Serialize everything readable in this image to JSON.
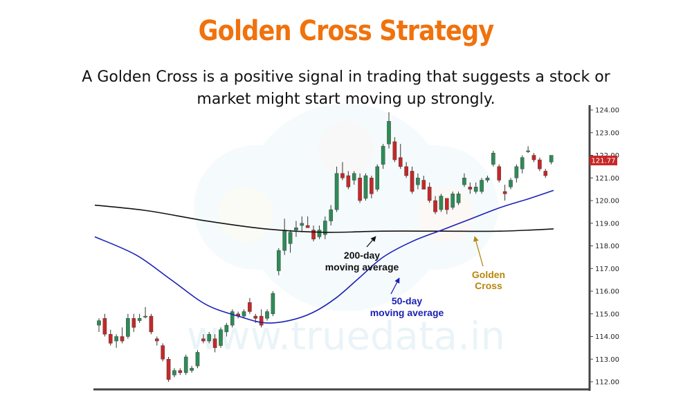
{
  "title": "Golden Cross Strategy",
  "subtitle_line1": "A Golden Cross is a positive signal in trading that suggests a stock or",
  "subtitle_line2": "market might start moving up strongly.",
  "watermark": "www.truedata.in",
  "colors": {
    "title": "#f0720d",
    "up_candle": "#2e8b57",
    "down_candle": "#c62828",
    "ma200": "#111111",
    "ma50": "#1a1fb5",
    "golden_cross_label": "#b7860b",
    "price_tag": "#c62828"
  },
  "chart_data": {
    "type": "candlestick",
    "y_axis": {
      "min": 112,
      "max": 124,
      "position": "right",
      "ticks": [
        "124.00",
        "123.00",
        "122.00",
        "121.00",
        "120.00",
        "119.00",
        "118.00",
        "117.00",
        "116.00",
        "115.00",
        "114.00",
        "113.00",
        "112.00"
      ]
    },
    "last_price": "121.77",
    "candles": [
      {
        "o": 114.5,
        "h": 114.8,
        "l": 114.2,
        "c": 114.7
      },
      {
        "o": 114.8,
        "h": 115.0,
        "l": 114.0,
        "c": 114.1
      },
      {
        "o": 114.1,
        "h": 114.3,
        "l": 113.6,
        "c": 113.7
      },
      {
        "o": 113.8,
        "h": 114.1,
        "l": 113.5,
        "c": 114.0
      },
      {
        "o": 114.0,
        "h": 114.4,
        "l": 113.7,
        "c": 113.8
      },
      {
        "o": 114.0,
        "h": 115.0,
        "l": 113.9,
        "c": 114.8
      },
      {
        "o": 114.8,
        "h": 115.0,
        "l": 114.2,
        "c": 114.4
      },
      {
        "o": 114.7,
        "h": 115.0,
        "l": 114.6,
        "c": 114.8
      },
      {
        "o": 114.9,
        "h": 115.3,
        "l": 114.8,
        "c": 114.9
      },
      {
        "o": 114.9,
        "h": 115.0,
        "l": 114.1,
        "c": 114.2
      },
      {
        "o": 113.9,
        "h": 114.0,
        "l": 113.6,
        "c": 113.8
      },
      {
        "o": 113.6,
        "h": 113.7,
        "l": 112.9,
        "c": 113.0
      },
      {
        "o": 113.0,
        "h": 113.1,
        "l": 112.0,
        "c": 112.1
      },
      {
        "o": 112.3,
        "h": 112.6,
        "l": 112.2,
        "c": 112.5
      },
      {
        "o": 112.5,
        "h": 112.6,
        "l": 112.3,
        "c": 112.4
      },
      {
        "o": 112.4,
        "h": 113.2,
        "l": 112.3,
        "c": 113.1
      },
      {
        "o": 112.5,
        "h": 112.7,
        "l": 112.4,
        "c": 112.6
      },
      {
        "o": 112.7,
        "h": 113.4,
        "l": 112.6,
        "c": 113.3
      },
      {
        "o": 113.9,
        "h": 114.1,
        "l": 113.7,
        "c": 113.8
      },
      {
        "o": 113.8,
        "h": 114.2,
        "l": 113.7,
        "c": 114.1
      },
      {
        "o": 113.9,
        "h": 114.1,
        "l": 113.3,
        "c": 113.5
      },
      {
        "o": 113.6,
        "h": 114.4,
        "l": 113.5,
        "c": 114.3
      },
      {
        "o": 114.2,
        "h": 114.6,
        "l": 114.0,
        "c": 114.5
      },
      {
        "o": 114.5,
        "h": 115.2,
        "l": 114.4,
        "c": 115.1
      },
      {
        "o": 115.0,
        "h": 115.1,
        "l": 114.8,
        "c": 114.9
      },
      {
        "o": 114.9,
        "h": 115.2,
        "l": 114.8,
        "c": 115.1
      },
      {
        "o": 115.5,
        "h": 115.7,
        "l": 115.0,
        "c": 115.1
      },
      {
        "o": 114.9,
        "h": 115.0,
        "l": 114.6,
        "c": 114.8
      },
      {
        "o": 114.9,
        "h": 115.2,
        "l": 114.4,
        "c": 114.5
      },
      {
        "o": 114.8,
        "h": 115.2,
        "l": 114.7,
        "c": 115.1
      },
      {
        "o": 115.0,
        "h": 116.0,
        "l": 114.9,
        "c": 115.9
      },
      {
        "o": 116.9,
        "h": 117.9,
        "l": 116.7,
        "c": 117.8
      },
      {
        "o": 117.8,
        "h": 119.2,
        "l": 117.6,
        "c": 118.7
      },
      {
        "o": 118.1,
        "h": 118.7,
        "l": 117.7,
        "c": 118.6
      },
      {
        "o": 118.7,
        "h": 119.1,
        "l": 118.4,
        "c": 118.8
      },
      {
        "o": 118.9,
        "h": 119.3,
        "l": 118.6,
        "c": 119.0
      },
      {
        "o": 118.9,
        "h": 119.3,
        "l": 118.8,
        "c": 118.8
      },
      {
        "o": 118.7,
        "h": 118.9,
        "l": 118.2,
        "c": 118.3
      },
      {
        "o": 118.4,
        "h": 118.9,
        "l": 118.3,
        "c": 118.7
      },
      {
        "o": 118.5,
        "h": 119.3,
        "l": 118.3,
        "c": 119.1
      },
      {
        "o": 119.1,
        "h": 119.8,
        "l": 118.9,
        "c": 119.6
      },
      {
        "o": 119.6,
        "h": 121.5,
        "l": 119.5,
        "c": 121.2
      },
      {
        "o": 121.2,
        "h": 121.7,
        "l": 120.9,
        "c": 121.0
      },
      {
        "o": 121.1,
        "h": 121.3,
        "l": 120.5,
        "c": 120.6
      },
      {
        "o": 120.9,
        "h": 121.3,
        "l": 120.7,
        "c": 121.2
      },
      {
        "o": 121.0,
        "h": 121.2,
        "l": 119.9,
        "c": 120.0
      },
      {
        "o": 120.1,
        "h": 121.2,
        "l": 120.0,
        "c": 121.1
      },
      {
        "o": 121.0,
        "h": 121.1,
        "l": 120.1,
        "c": 120.3
      },
      {
        "o": 120.5,
        "h": 121.6,
        "l": 120.4,
        "c": 121.5
      },
      {
        "o": 121.6,
        "h": 122.5,
        "l": 121.4,
        "c": 122.4
      },
      {
        "o": 122.5,
        "h": 123.9,
        "l": 122.3,
        "c": 123.5
      },
      {
        "o": 122.6,
        "h": 122.8,
        "l": 121.7,
        "c": 121.8
      },
      {
        "o": 121.9,
        "h": 122.5,
        "l": 121.4,
        "c": 121.5
      },
      {
        "o": 121.5,
        "h": 121.7,
        "l": 121.0,
        "c": 121.1
      },
      {
        "o": 121.3,
        "h": 121.5,
        "l": 120.3,
        "c": 120.4
      },
      {
        "o": 120.7,
        "h": 121.2,
        "l": 120.5,
        "c": 121.0
      },
      {
        "o": 120.9,
        "h": 121.1,
        "l": 120.5,
        "c": 120.5
      },
      {
        "o": 120.6,
        "h": 120.8,
        "l": 119.9,
        "c": 120.0
      },
      {
        "o": 120.0,
        "h": 120.2,
        "l": 119.4,
        "c": 119.5
      },
      {
        "o": 119.6,
        "h": 120.3,
        "l": 119.5,
        "c": 120.2
      },
      {
        "o": 120.1,
        "h": 120.1,
        "l": 119.4,
        "c": 119.6
      },
      {
        "o": 119.7,
        "h": 120.4,
        "l": 119.6,
        "c": 120.3
      },
      {
        "o": 119.9,
        "h": 120.4,
        "l": 119.8,
        "c": 120.3
      },
      {
        "o": 120.7,
        "h": 121.2,
        "l": 120.6,
        "c": 121.0
      },
      {
        "o": 120.6,
        "h": 120.8,
        "l": 120.3,
        "c": 120.5
      },
      {
        "o": 120.4,
        "h": 120.8,
        "l": 120.3,
        "c": 120.6
      },
      {
        "o": 120.4,
        "h": 121.0,
        "l": 120.3,
        "c": 120.9
      },
      {
        "o": 120.9,
        "h": 121.1,
        "l": 120.8,
        "c": 121.0
      },
      {
        "o": 121.6,
        "h": 122.2,
        "l": 121.5,
        "c": 122.1
      },
      {
        "o": 121.5,
        "h": 121.6,
        "l": 120.8,
        "c": 120.9
      },
      {
        "o": 120.4,
        "h": 120.7,
        "l": 120.0,
        "c": 120.3
      },
      {
        "o": 120.6,
        "h": 121.0,
        "l": 120.5,
        "c": 120.9
      },
      {
        "o": 121.0,
        "h": 121.6,
        "l": 120.8,
        "c": 121.5
      },
      {
        "o": 121.4,
        "h": 122.0,
        "l": 121.2,
        "c": 121.9
      },
      {
        "o": 122.2,
        "h": 122.4,
        "l": 122.1,
        "c": 122.2
      },
      {
        "o": 122.0,
        "h": 122.1,
        "l": 121.7,
        "c": 121.8
      },
      {
        "o": 121.8,
        "h": 121.9,
        "l": 121.3,
        "c": 121.4
      },
      {
        "o": 121.3,
        "h": 121.4,
        "l": 121.0,
        "c": 121.1
      },
      {
        "o": 121.7,
        "h": 122.0,
        "l": 121.6,
        "c": 122.0
      }
    ],
    "ma200": {
      "index": [
        0,
        9,
        19,
        29,
        39,
        49,
        59,
        69,
        78
      ],
      "values": [
        119.8,
        119.55,
        119.1,
        118.75,
        118.6,
        118.65,
        118.65,
        118.65,
        118.75
      ]
    },
    "ma50": {
      "index": [
        0,
        7,
        13,
        19,
        25,
        29,
        33,
        37,
        41,
        45,
        49,
        54,
        59,
        64,
        69,
        74,
        78
      ],
      "values": [
        118.4,
        117.6,
        116.5,
        115.4,
        114.85,
        114.6,
        114.7,
        115.05,
        115.7,
        116.6,
        117.5,
        118.2,
        118.7,
        119.2,
        119.7,
        120.1,
        120.45
      ]
    },
    "annotations": [
      {
        "line1": "200-day",
        "line2": "moving average"
      },
      {
        "line1": "50-day",
        "line2": "moving average"
      },
      {
        "line1": "Golden",
        "line2": "Cross"
      }
    ]
  }
}
